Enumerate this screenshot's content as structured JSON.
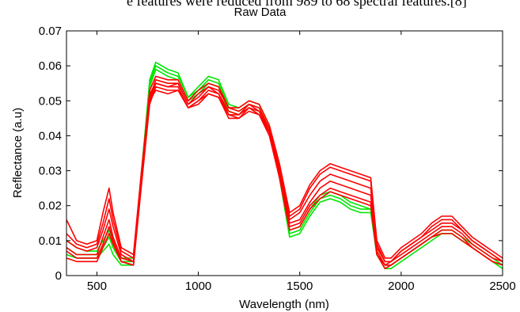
{
  "page": {
    "caption_fragment": "e features were reduced from 989 to 68 spectral features.[8]"
  },
  "chart_data": {
    "type": "line",
    "title": "Raw Data",
    "xlabel": "Wavelength (nm)",
    "ylabel": "Reflectance (a.u)",
    "xlim": [
      350,
      2500
    ],
    "ylim": [
      0,
      0.07
    ],
    "xticks": [
      500,
      1000,
      1500,
      2000,
      2500
    ],
    "yticks": [
      0,
      0.01,
      0.02,
      0.03,
      0.04,
      0.05,
      0.06,
      0.07
    ],
    "xtick_labels": [
      "500",
      "1000",
      "1500",
      "2000",
      "2500"
    ],
    "ytick_labels": [
      "0",
      "0.01",
      "0.02",
      "0.03",
      "0.04",
      "0.05",
      "0.06",
      "0.07"
    ],
    "grid": false,
    "x": [
      350,
      400,
      450,
      500,
      530,
      560,
      580,
      620,
      680,
      720,
      760,
      790,
      850,
      900,
      950,
      1000,
      1050,
      1100,
      1150,
      1200,
      1250,
      1300,
      1350,
      1400,
      1450,
      1500,
      1550,
      1600,
      1650,
      1700,
      1750,
      1800,
      1850,
      1880,
      1920,
      1950,
      2000,
      2050,
      2100,
      2150,
      2200,
      2250,
      2300,
      2350,
      2400,
      2450,
      2500
    ],
    "series": [
      {
        "color": "#00e600",
        "values": [
          0.01,
          0.008,
          0.007,
          0.007,
          0.01,
          0.013,
          0.009,
          0.005,
          0.005,
          0.03,
          0.055,
          0.06,
          0.058,
          0.057,
          0.051,
          0.053,
          0.056,
          0.055,
          0.048,
          0.047,
          0.049,
          0.048,
          0.042,
          0.03,
          0.013,
          0.014,
          0.019,
          0.023,
          0.024,
          0.023,
          0.021,
          0.02,
          0.019,
          0.007,
          0.003,
          0.003,
          0.005,
          0.007,
          0.009,
          0.011,
          0.013,
          0.013,
          0.011,
          0.009,
          0.007,
          0.005,
          0.003
        ]
      },
      {
        "color": "#00e600",
        "values": [
          0.006,
          0.005,
          0.005,
          0.005,
          0.007,
          0.009,
          0.006,
          0.003,
          0.003,
          0.028,
          0.054,
          0.059,
          0.057,
          0.056,
          0.05,
          0.052,
          0.055,
          0.054,
          0.047,
          0.046,
          0.048,
          0.046,
          0.041,
          0.028,
          0.011,
          0.012,
          0.017,
          0.021,
          0.022,
          0.021,
          0.019,
          0.018,
          0.018,
          0.006,
          0.002,
          0.002,
          0.004,
          0.006,
          0.008,
          0.01,
          0.012,
          0.012,
          0.01,
          0.008,
          0.006,
          0.004,
          0.002
        ]
      },
      {
        "color": "#00e600",
        "values": [
          0.008,
          0.006,
          0.006,
          0.006,
          0.008,
          0.011,
          0.008,
          0.004,
          0.004,
          0.029,
          0.056,
          0.061,
          0.059,
          0.058,
          0.051,
          0.054,
          0.057,
          0.056,
          0.049,
          0.048,
          0.05,
          0.049,
          0.043,
          0.029,
          0.012,
          0.013,
          0.018,
          0.022,
          0.023,
          0.022,
          0.02,
          0.019,
          0.019,
          0.007,
          0.003,
          0.003,
          0.005,
          0.007,
          0.009,
          0.011,
          0.012,
          0.012,
          0.01,
          0.008,
          0.006,
          0.004,
          0.003
        ]
      },
      {
        "color": "#ff0000",
        "values": [
          0.016,
          0.01,
          0.009,
          0.01,
          0.018,
          0.025,
          0.018,
          0.008,
          0.006,
          0.03,
          0.052,
          0.055,
          0.054,
          0.055,
          0.049,
          0.052,
          0.054,
          0.053,
          0.048,
          0.048,
          0.05,
          0.049,
          0.043,
          0.032,
          0.018,
          0.02,
          0.026,
          0.03,
          0.032,
          0.031,
          0.03,
          0.029,
          0.028,
          0.01,
          0.005,
          0.005,
          0.008,
          0.01,
          0.012,
          0.015,
          0.017,
          0.017,
          0.014,
          0.011,
          0.009,
          0.007,
          0.005
        ]
      },
      {
        "color": "#ff0000",
        "values": [
          0.01,
          0.008,
          0.007,
          0.008,
          0.013,
          0.019,
          0.014,
          0.006,
          0.004,
          0.028,
          0.05,
          0.053,
          0.052,
          0.053,
          0.048,
          0.05,
          0.052,
          0.051,
          0.046,
          0.046,
          0.048,
          0.047,
          0.041,
          0.03,
          0.016,
          0.018,
          0.023,
          0.027,
          0.029,
          0.028,
          0.027,
          0.026,
          0.025,
          0.008,
          0.004,
          0.004,
          0.007,
          0.009,
          0.011,
          0.013,
          0.015,
          0.015,
          0.013,
          0.01,
          0.008,
          0.006,
          0.004
        ]
      },
      {
        "color": "#ff0000",
        "values": [
          0.008,
          0.006,
          0.006,
          0.006,
          0.011,
          0.016,
          0.011,
          0.005,
          0.004,
          0.027,
          0.051,
          0.056,
          0.055,
          0.055,
          0.049,
          0.051,
          0.054,
          0.052,
          0.047,
          0.046,
          0.049,
          0.047,
          0.042,
          0.029,
          0.015,
          0.016,
          0.021,
          0.025,
          0.027,
          0.026,
          0.025,
          0.024,
          0.023,
          0.007,
          0.003,
          0.004,
          0.006,
          0.008,
          0.01,
          0.012,
          0.014,
          0.014,
          0.012,
          0.009,
          0.007,
          0.005,
          0.004
        ]
      },
      {
        "color": "#ff0000",
        "values": [
          0.005,
          0.004,
          0.004,
          0.004,
          0.008,
          0.012,
          0.009,
          0.004,
          0.003,
          0.026,
          0.049,
          0.054,
          0.053,
          0.053,
          0.048,
          0.049,
          0.052,
          0.051,
          0.045,
          0.045,
          0.047,
          0.046,
          0.04,
          0.028,
          0.014,
          0.015,
          0.02,
          0.023,
          0.025,
          0.024,
          0.023,
          0.022,
          0.021,
          0.006,
          0.003,
          0.003,
          0.005,
          0.007,
          0.009,
          0.011,
          0.013,
          0.013,
          0.011,
          0.008,
          0.006,
          0.004,
          0.003
        ]
      },
      {
        "color": "#ff0000",
        "values": [
          0.012,
          0.009,
          0.008,
          0.009,
          0.015,
          0.022,
          0.016,
          0.007,
          0.005,
          0.029,
          0.053,
          0.057,
          0.056,
          0.056,
          0.05,
          0.053,
          0.055,
          0.054,
          0.048,
          0.047,
          0.049,
          0.048,
          0.042,
          0.031,
          0.017,
          0.019,
          0.025,
          0.029,
          0.031,
          0.03,
          0.029,
          0.028,
          0.027,
          0.009,
          0.004,
          0.004,
          0.007,
          0.009,
          0.011,
          0.014,
          0.016,
          0.016,
          0.013,
          0.01,
          0.008,
          0.006,
          0.004
        ]
      },
      {
        "color": "#ff0000",
        "values": [
          0.007,
          0.005,
          0.005,
          0.005,
          0.009,
          0.014,
          0.01,
          0.004,
          0.003,
          0.027,
          0.05,
          0.055,
          0.054,
          0.054,
          0.048,
          0.05,
          0.053,
          0.052,
          0.046,
          0.045,
          0.048,
          0.046,
          0.041,
          0.028,
          0.013,
          0.014,
          0.019,
          0.022,
          0.024,
          0.023,
          0.022,
          0.021,
          0.02,
          0.006,
          0.002,
          0.003,
          0.005,
          0.007,
          0.009,
          0.011,
          0.012,
          0.012,
          0.01,
          0.008,
          0.006,
          0.004,
          0.003
        ]
      }
    ]
  }
}
